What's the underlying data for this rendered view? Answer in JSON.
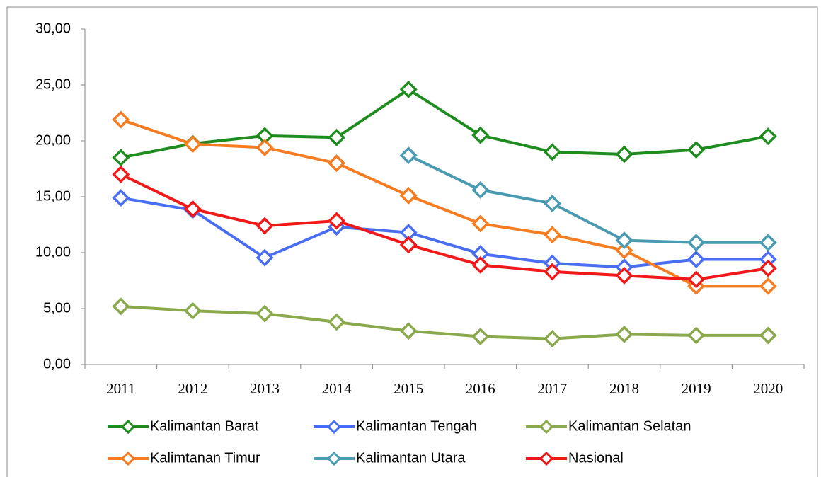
{
  "chart_data": {
    "type": "line",
    "categories": [
      "2011",
      "2012",
      "2013",
      "2014",
      "2015",
      "2016",
      "2017",
      "2018",
      "2019",
      "2020"
    ],
    "series": [
      {
        "name": "Kalimantan Barat",
        "color": "#1e8c1e",
        "values": [
          18.5,
          19.75,
          20.45,
          20.3,
          24.6,
          20.5,
          19.0,
          18.8,
          19.2,
          20.4
        ]
      },
      {
        "name": "Kalimantan Tengah",
        "color": "#4a6ef2",
        "values": [
          14.9,
          13.8,
          9.55,
          12.3,
          11.8,
          9.9,
          9.05,
          8.7,
          9.4,
          9.4
        ]
      },
      {
        "name": "Kalimantan Selatan",
        "color": "#8aa94c",
        "values": [
          5.2,
          4.8,
          4.55,
          3.8,
          3.0,
          2.5,
          2.3,
          2.7,
          2.6,
          2.6
        ]
      },
      {
        "name": "Kalimtanan Timur",
        "color": "#f57c20",
        "values": [
          21.9,
          19.7,
          19.4,
          18.0,
          15.1,
          12.6,
          11.6,
          10.2,
          7.0,
          7.0
        ]
      },
      {
        "name": "Kalimantan Utara",
        "color": "#4a9ab2",
        "values": [
          null,
          null,
          null,
          null,
          18.7,
          15.6,
          14.4,
          11.1,
          10.9,
          10.9
        ]
      },
      {
        "name": "Nasional",
        "color": "#f01818",
        "values": [
          17.0,
          13.9,
          12.4,
          12.85,
          10.7,
          8.9,
          8.3,
          7.95,
          7.6,
          8.6
        ]
      }
    ],
    "ylim": [
      0,
      30
    ],
    "yticks": [
      {
        "value": 0,
        "label": "0,00"
      },
      {
        "value": 5,
        "label": "5,00"
      },
      {
        "value": 10,
        "label": "10,00"
      },
      {
        "value": 15,
        "label": "15,00"
      },
      {
        "value": 20,
        "label": "20,00"
      },
      {
        "value": 25,
        "label": "25,00"
      },
      {
        "value": 30,
        "label": "30,00"
      }
    ],
    "grid": false
  }
}
